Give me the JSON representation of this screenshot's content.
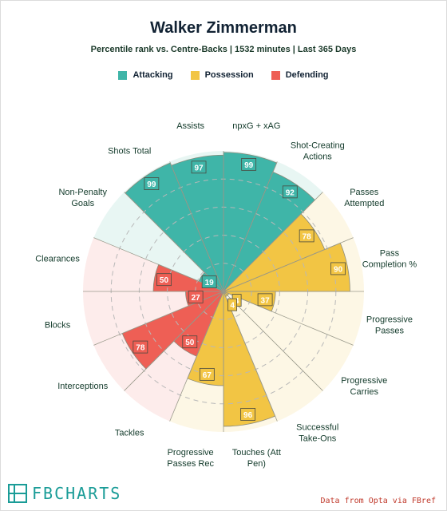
{
  "header": {
    "title": "Walker Zimmerman",
    "subtitle": "Percentile rank vs. Centre-Backs | 1532 minutes | Last 365 Days"
  },
  "legend": [
    {
      "label": "Attacking",
      "color": "#3fb5a8"
    },
    {
      "label": "Possession",
      "color": "#f2c544"
    },
    {
      "label": "Defending",
      "color": "#ee5f55"
    }
  ],
  "footer": {
    "logo_text": "FBCHARTS",
    "credit": "Data from Opta via FBref"
  },
  "colors": {
    "attacking": "#3fb5a8",
    "attacking_bg": "#e8f6f3",
    "possession": "#f2c544",
    "possession_bg": "#fdf7e5",
    "defending": "#ee5f55",
    "defending_bg": "#fdeceb",
    "label_text": "#123a2a"
  },
  "chart_data": {
    "type": "polar-bar",
    "title": "Walker Zimmerman",
    "subtitle": "Percentile rank vs. Centre-Backs | 1532 minutes | Last 365 Days",
    "range": [
      0,
      100
    ],
    "grid_rings": [
      20,
      40,
      60,
      80
    ],
    "categories": [
      {
        "label": "npxG + xAG",
        "value": 99,
        "group": "Attacking"
      },
      {
        "label": "Shot-Creating Actions",
        "value": 92,
        "group": "Attacking"
      },
      {
        "label": "Passes Attempted",
        "value": 78,
        "group": "Possession"
      },
      {
        "label": "Pass Completion %",
        "value": 90,
        "group": "Possession"
      },
      {
        "label": "Progressive Passes",
        "value": 37,
        "group": "Possession"
      },
      {
        "label": "Progressive Carries",
        "value": 4,
        "group": "Possession"
      },
      {
        "label": "Successful Take-Ons",
        "value": 4,
        "group": "Possession"
      },
      {
        "label": "Touches (Att Pen)",
        "value": 96,
        "group": "Possession"
      },
      {
        "label": "Progressive Passes Rec",
        "value": 67,
        "group": "Possession"
      },
      {
        "label": "Tackles",
        "value": 50,
        "group": "Defending"
      },
      {
        "label": "Interceptions",
        "value": 78,
        "group": "Defending"
      },
      {
        "label": "Blocks",
        "value": 27,
        "group": "Defending"
      },
      {
        "label": "Clearances",
        "value": 50,
        "group": "Defending"
      },
      {
        "label": "Non-Penalty Goals",
        "value": 19,
        "group": "Attacking"
      },
      {
        "label": "Shots Total",
        "value": 99,
        "group": "Attacking"
      },
      {
        "label": "Assists",
        "value": 97,
        "group": "Attacking"
      }
    ]
  }
}
